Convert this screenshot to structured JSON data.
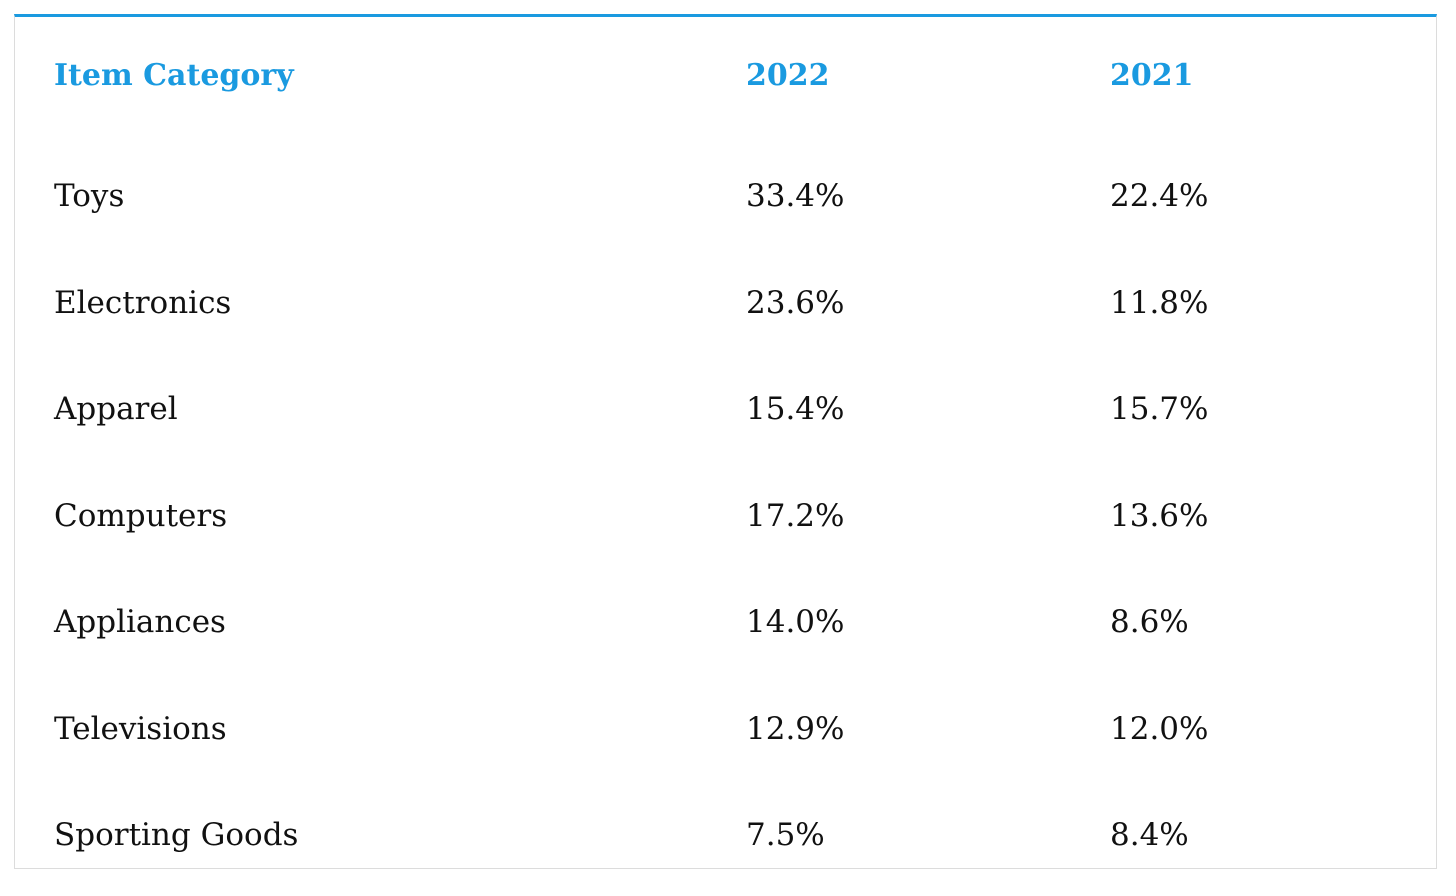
{
  "chart_data": {
    "type": "table",
    "columns": [
      "Item Category",
      "2022",
      "2021"
    ],
    "rows": [
      {
        "category": "Toys",
        "y2022": "33.4%",
        "y2021": "22.4%"
      },
      {
        "category": "Electronics",
        "y2022": "23.6%",
        "y2021": "11.8%"
      },
      {
        "category": "Apparel",
        "y2022": "15.4%",
        "y2021": "15.7%"
      },
      {
        "category": "Computers",
        "y2022": "17.2%",
        "y2021": "13.6%"
      },
      {
        "category": "Appliances",
        "y2022": "14.0%",
        "y2021": "8.6%"
      },
      {
        "category": "Televisions",
        "y2022": "12.9%",
        "y2021": "12.0%"
      },
      {
        "category": "Sporting Goods",
        "y2022": "7.5%",
        "y2021": "8.4%"
      }
    ]
  },
  "colors": {
    "accent": "#1a9ae0",
    "text": "#111111",
    "border": "#dcdcdc"
  }
}
